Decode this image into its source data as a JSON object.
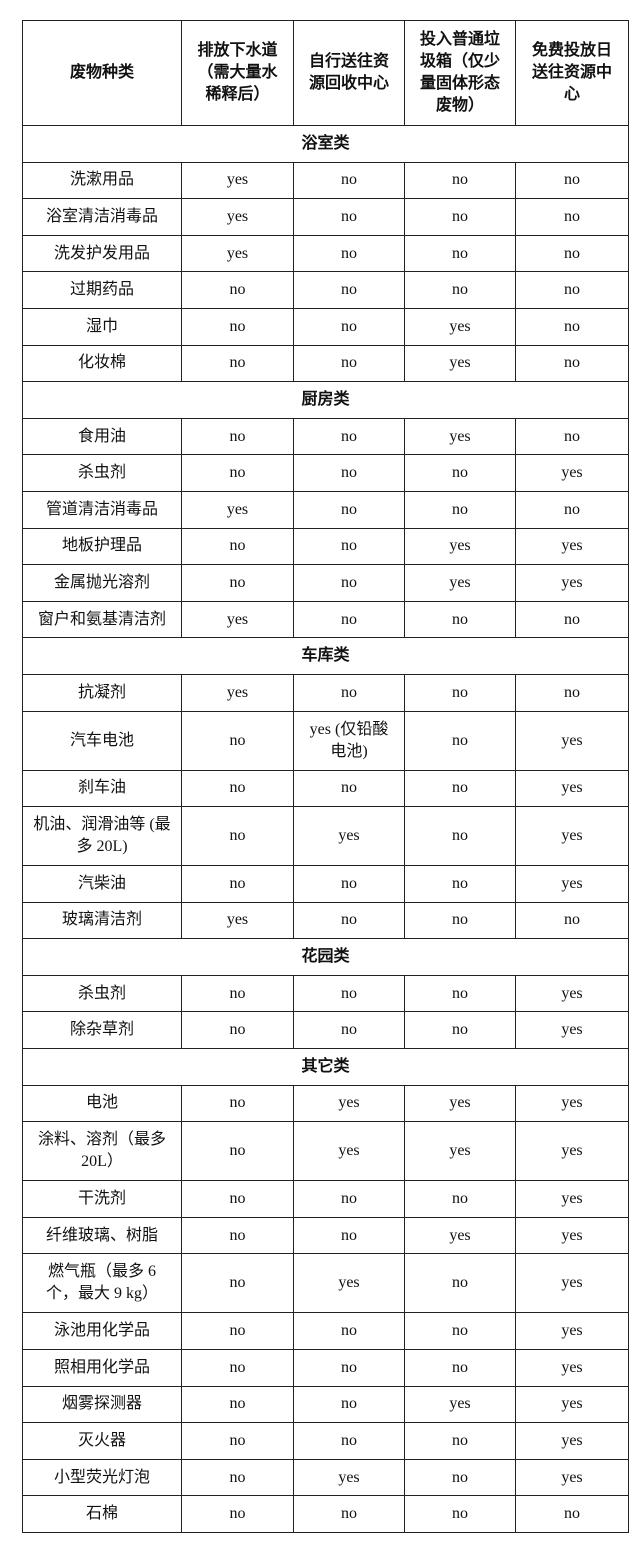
{
  "header": {
    "columns": [
      "废物种类",
      "排放下水道（需大量水稀释后）",
      "自行送往资源回收中心",
      "投入普通垃圾箱（仅少量固体形态废物）",
      "免费投放日送往资源中心"
    ]
  },
  "sections": [
    {
      "title": "浴室类",
      "rows": [
        [
          "洗漱用品",
          "yes",
          "no",
          "no",
          "no"
        ],
        [
          "浴室清洁消毒品",
          "yes",
          "no",
          "no",
          "no"
        ],
        [
          "洗发护发用品",
          "yes",
          "no",
          "no",
          "no"
        ],
        [
          "过期药品",
          "no",
          "no",
          "no",
          "no"
        ],
        [
          "湿巾",
          "no",
          "no",
          "yes",
          "no"
        ],
        [
          "化妆棉",
          "no",
          "no",
          "yes",
          "no"
        ]
      ]
    },
    {
      "title": "厨房类",
      "rows": [
        [
          "食用油",
          "no",
          "no",
          "yes",
          "no"
        ],
        [
          "杀虫剂",
          "no",
          "no",
          "no",
          "yes"
        ],
        [
          "管道清洁消毒品",
          "yes",
          "no",
          "no",
          "no"
        ],
        [
          "地板护理品",
          "no",
          "no",
          "yes",
          "yes"
        ],
        [
          "金属抛光溶剂",
          "no",
          "no",
          "yes",
          "yes"
        ],
        [
          "窗户和氨基清洁剂",
          "yes",
          "no",
          "no",
          "no"
        ]
      ]
    },
    {
      "title": "车库类",
      "rows": [
        [
          "抗凝剂",
          "yes",
          "no",
          "no",
          "no"
        ],
        [
          "汽车电池",
          "no",
          "yes (仅铅酸电池)",
          "no",
          "yes"
        ],
        [
          "刹车油",
          "no",
          "no",
          "no",
          "yes"
        ],
        [
          "机油、润滑油等 (最多 20L)",
          "no",
          "yes",
          "no",
          "yes"
        ],
        [
          "汽柴油",
          "no",
          "no",
          "no",
          "yes"
        ],
        [
          "玻璃清洁剂",
          "yes",
          "no",
          "no",
          "no"
        ]
      ]
    },
    {
      "title": "花园类",
      "rows": [
        [
          "杀虫剂",
          "no",
          "no",
          "no",
          "yes"
        ],
        [
          "除杂草剂",
          "no",
          "no",
          "no",
          "yes"
        ]
      ]
    },
    {
      "title": "其它类",
      "rows": [
        [
          "电池",
          "no",
          "yes",
          "yes",
          "yes"
        ],
        [
          "涂料、溶剂（最多 20L）",
          "no",
          "yes",
          "yes",
          "yes"
        ],
        [
          "干洗剂",
          "no",
          "no",
          "no",
          "yes"
        ],
        [
          "纤维玻璃、树脂",
          "no",
          "no",
          "yes",
          "yes"
        ],
        [
          "燃气瓶（最多 6 个，最大 9 kg）",
          "no",
          "yes",
          "no",
          "yes"
        ],
        [
          "泳池用化学品",
          "no",
          "no",
          "no",
          "yes"
        ],
        [
          "照相用化学品",
          "no",
          "no",
          "no",
          "yes"
        ],
        [
          "烟雾探测器",
          "no",
          "no",
          "yes",
          "yes"
        ],
        [
          "灭火器",
          "no",
          "no",
          "no",
          "yes"
        ],
        [
          "小型荧光灯泡",
          "no",
          "yes",
          "no",
          "yes"
        ],
        [
          "石棉",
          "no",
          "no",
          "no",
          "no"
        ]
      ]
    }
  ]
}
